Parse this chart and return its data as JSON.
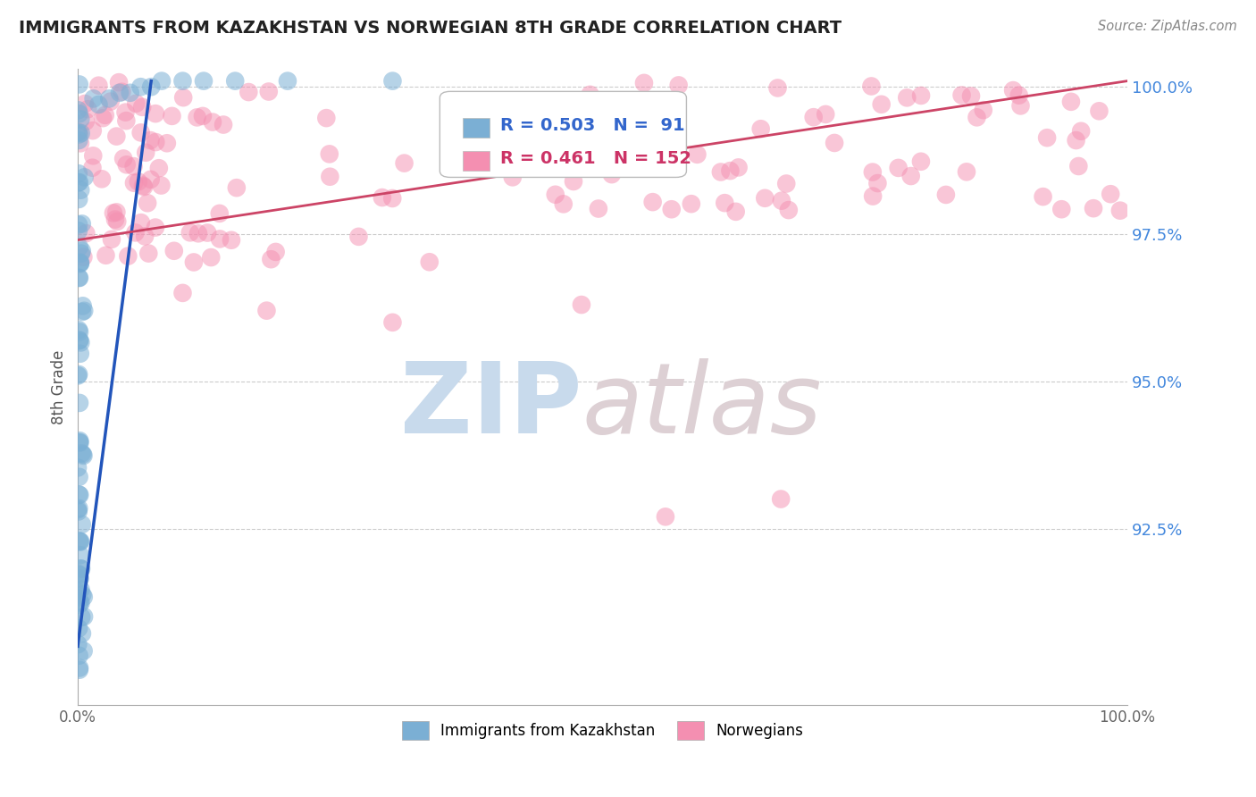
{
  "title": "IMMIGRANTS FROM KAZAKHSTAN VS NORWEGIAN 8TH GRADE CORRELATION CHART",
  "source": "Source: ZipAtlas.com",
  "ylabel": "8th Grade",
  "blue_line_endpoints": [
    [
      0.0,
      0.905
    ],
    [
      0.07,
      1.001
    ]
  ],
  "pink_line_endpoints": [
    [
      0.0,
      0.974
    ],
    [
      1.0,
      1.001
    ]
  ],
  "xlim": [
    0.0,
    1.0
  ],
  "ylim": [
    0.895,
    1.003
  ],
  "yticks": [
    0.925,
    0.95,
    0.975,
    1.0
  ],
  "ytick_labels": [
    "92.5%",
    "95.0%",
    "97.5%",
    "100.0%"
  ],
  "xticks": [
    0.0,
    0.25,
    0.5,
    0.75,
    1.0
  ],
  "xtick_labels": [
    "0.0%",
    "",
    "",
    "",
    "100.0%"
  ],
  "blue_color": "#7bafd4",
  "pink_color": "#f48fb1",
  "blue_line_color": "#2255bb",
  "pink_line_color": "#cc4466",
  "background_color": "#ffffff",
  "grid_color": "#cccccc",
  "title_color": "#222222",
  "legend_R_blue": "R = 0.503",
  "legend_N_blue": "N =  91",
  "legend_R_pink": "R = 0.461",
  "legend_N_pink": "N = 152"
}
